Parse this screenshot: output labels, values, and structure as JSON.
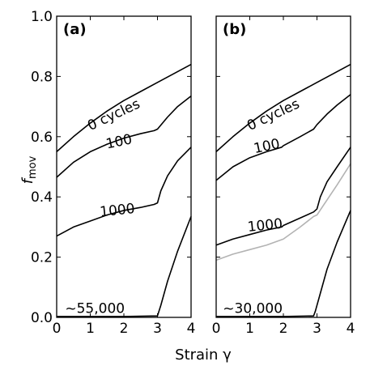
{
  "chart_data": [
    {
      "type": "line",
      "panel_label": "(a)",
      "xlabel": "Strain γ",
      "ylabel": "f_mov",
      "xlim": [
        0,
        4
      ],
      "ylim": [
        0,
        1.0
      ],
      "x_ticks": [
        "0",
        "1",
        "2",
        "3",
        "4"
      ],
      "y_ticks": [
        "0.0",
        "0.2",
        "0.4",
        "0.6",
        "0.8",
        "1.0"
      ],
      "series": [
        {
          "name": "0 cycles",
          "color": "#000000",
          "x": [
            0,
            0.5,
            1,
            1.5,
            2,
            2.5,
            3,
            3.5,
            4
          ],
          "y": [
            0.55,
            0.6,
            0.645,
            0.685,
            0.72,
            0.75,
            0.78,
            0.81,
            0.84
          ]
        },
        {
          "name": "100",
          "color": "#000000",
          "x": [
            0,
            0.5,
            1,
            1.5,
            2,
            2.5,
            2.9,
            3.0,
            3.3,
            3.6,
            4
          ],
          "y": [
            0.465,
            0.515,
            0.55,
            0.575,
            0.595,
            0.61,
            0.62,
            0.625,
            0.665,
            0.7,
            0.735
          ]
        },
        {
          "name": "1000",
          "color": "#000000",
          "x": [
            0,
            0.5,
            1,
            1.5,
            2,
            2.5,
            2.9,
            3.0,
            3.1,
            3.3,
            3.6,
            4
          ],
          "y": [
            0.27,
            0.3,
            0.32,
            0.34,
            0.355,
            0.365,
            0.375,
            0.38,
            0.42,
            0.47,
            0.52,
            0.565
          ]
        },
        {
          "name": "~55,000",
          "color": "#000000",
          "x": [
            0,
            1,
            2,
            3,
            3.1,
            3.3,
            3.6,
            4
          ],
          "y": [
            0.003,
            0.003,
            0.003,
            0.005,
            0.04,
            0.12,
            0.22,
            0.335
          ]
        }
      ],
      "curve_labels": [
        {
          "text": "0 cycles",
          "x": 1.0,
          "y": 0.62,
          "rotate": -25
        },
        {
          "text": "100",
          "x": 1.5,
          "y": 0.56,
          "rotate": -12
        },
        {
          "text": "1000",
          "x": 1.3,
          "y": 0.335,
          "rotate": -6
        },
        {
          "text": "~55,000",
          "x": 0.25,
          "y": 0.015,
          "rotate": 0
        }
      ]
    },
    {
      "type": "line",
      "panel_label": "(b)",
      "xlabel": "Strain γ",
      "xlim": [
        0,
        4
      ],
      "ylim": [
        0,
        1.0
      ],
      "x_ticks": [
        "0",
        "1",
        "2",
        "3",
        "4"
      ],
      "series": [
        {
          "name": "0 cycles",
          "color": "#000000",
          "x": [
            0,
            0.5,
            1,
            1.5,
            2,
            2.5,
            3,
            3.5,
            4
          ],
          "y": [
            0.55,
            0.6,
            0.645,
            0.685,
            0.72,
            0.75,
            0.78,
            0.81,
            0.84
          ]
        },
        {
          "name": "100",
          "color": "#000000",
          "x": [
            0,
            0.5,
            1,
            1.5,
            1.95,
            2.0,
            2.5,
            2.9,
            3.0,
            3.3,
            3.6,
            4
          ],
          "y": [
            0.455,
            0.5,
            0.53,
            0.55,
            0.565,
            0.57,
            0.6,
            0.625,
            0.64,
            0.675,
            0.705,
            0.74
          ]
        },
        {
          "name": "1000",
          "color": "#000000",
          "x": [
            0,
            0.5,
            1,
            1.5,
            1.95,
            2.0,
            2.5,
            2.9,
            3.0,
            3.1,
            3.3,
            3.6,
            4
          ],
          "y": [
            0.24,
            0.26,
            0.275,
            0.29,
            0.3,
            0.305,
            0.33,
            0.35,
            0.36,
            0.4,
            0.45,
            0.5,
            0.565
          ]
        },
        {
          "name": "",
          "color": "#b3b3b3",
          "x": [
            0,
            0.5,
            1,
            1.5,
            2.0,
            2.5,
            2.9,
            3.0,
            3.3,
            3.6,
            4
          ],
          "y": [
            0.19,
            0.21,
            0.225,
            0.24,
            0.26,
            0.3,
            0.335,
            0.34,
            0.39,
            0.44,
            0.51
          ]
        },
        {
          "name": "~30,000",
          "color": "#000000",
          "x": [
            0,
            1,
            2,
            2.9,
            2.95,
            3.1,
            3.3,
            3.6,
            4
          ],
          "y": [
            0.003,
            0.003,
            0.003,
            0.005,
            0.02,
            0.08,
            0.16,
            0.25,
            0.355
          ]
        }
      ],
      "curve_labels": [
        {
          "text": "0 cycles",
          "x": 1.0,
          "y": 0.62,
          "rotate": -25
        },
        {
          "text": "100",
          "x": 1.15,
          "y": 0.545,
          "rotate": -12
        },
        {
          "text": "1000",
          "x": 0.95,
          "y": 0.285,
          "rotate": -6
        },
        {
          "text": "~30,000",
          "x": 0.2,
          "y": 0.015,
          "rotate": 0
        }
      ]
    }
  ]
}
